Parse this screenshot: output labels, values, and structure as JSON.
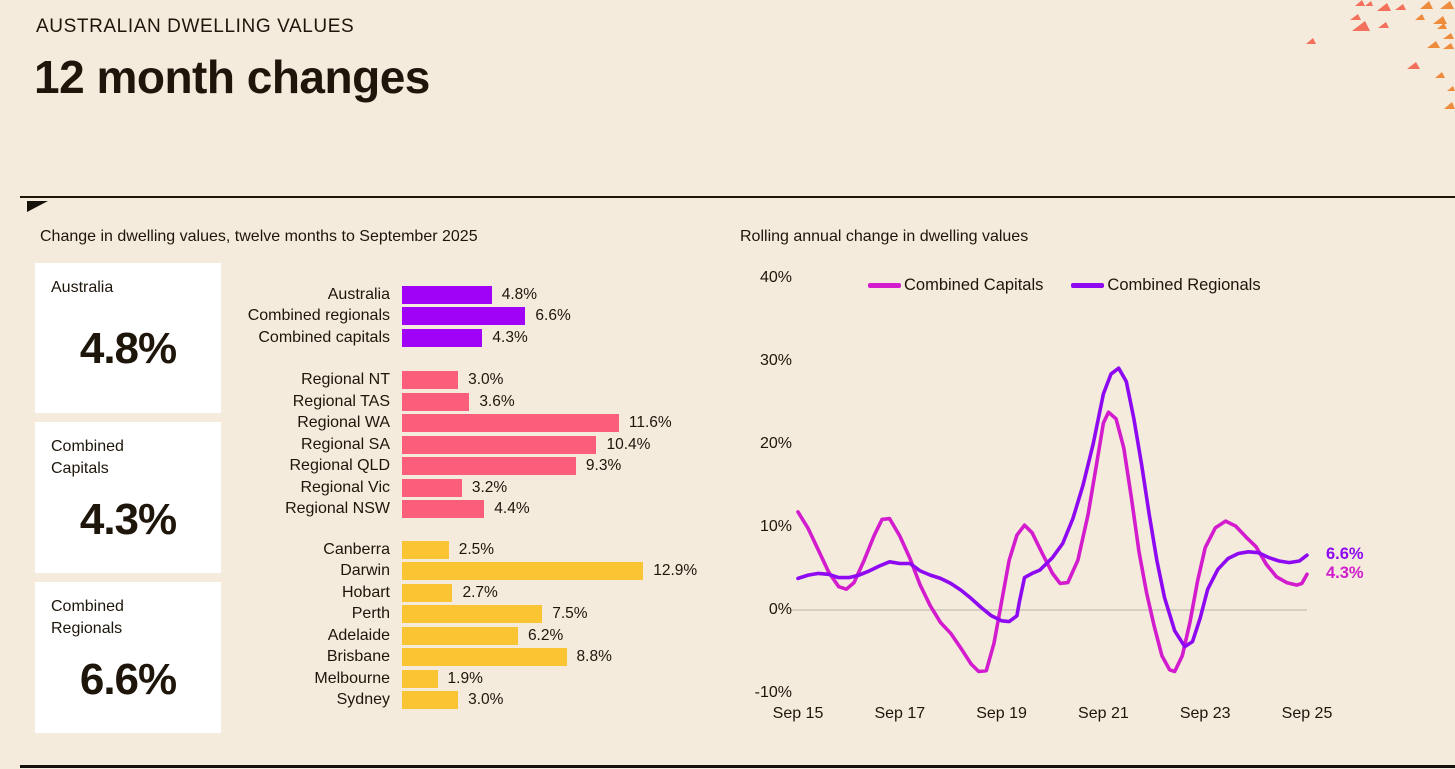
{
  "page": {
    "eyebrow": "AUSTRALIAN DWELLING VALUES",
    "title": "12 month changes"
  },
  "summary_cards": [
    {
      "label": "Australia",
      "value": "4.8%"
    },
    {
      "label": "Combined\nCapitals",
      "value": "4.3%"
    },
    {
      "label": "Combined\nRegionals",
      "value": "6.6%"
    }
  ],
  "colors": {
    "background": "#F4EBDC",
    "text": "#1E160B",
    "card_bg": "#FFFFFF",
    "zero_line": "#CBC4B8",
    "rule": "#1E160B",
    "deco_coral": "#F2705C",
    "deco_orange": "#EE8C3E"
  },
  "chart_data": [
    {
      "type": "bar",
      "title": "Change in dwelling values, twelve months to September 2025",
      "orientation": "horizontal",
      "unit": "%",
      "value_format": "one_decimal_percent",
      "groups": [
        {
          "name": "national",
          "color": "#A001F7",
          "bars": [
            {
              "label": "Australia",
              "value": 4.8
            },
            {
              "label": "Combined regionals",
              "value": 6.6
            },
            {
              "label": "Combined capitals",
              "value": 4.3
            }
          ]
        },
        {
          "name": "regional",
          "color": "#FA5E7B",
          "bars": [
            {
              "label": "Regional NT",
              "value": 3.0
            },
            {
              "label": "Regional TAS",
              "value": 3.6
            },
            {
              "label": "Regional WA",
              "value": 11.6
            },
            {
              "label": "Regional SA",
              "value": 10.4
            },
            {
              "label": "Regional QLD",
              "value": 9.3
            },
            {
              "label": "Regional Vic",
              "value": 3.2
            },
            {
              "label": "Regional NSW",
              "value": 4.4
            }
          ]
        },
        {
          "name": "capitals",
          "color": "#FAC433",
          "bars": [
            {
              "label": "Canberra",
              "value": 2.5
            },
            {
              "label": "Darwin",
              "value": 12.9
            },
            {
              "label": "Hobart",
              "value": 2.7
            },
            {
              "label": "Perth",
              "value": 7.5
            },
            {
              "label": "Adelaide",
              "value": 6.2
            },
            {
              "label": "Brisbane",
              "value": 8.8
            },
            {
              "label": "Melbourne",
              "value": 1.9
            },
            {
              "label": "Sydney",
              "value": 3.0
            }
          ]
        }
      ]
    },
    {
      "type": "line",
      "title": "Rolling annual change in dwelling values",
      "x_ticks": [
        {
          "label": "Sep 15",
          "t": 0
        },
        {
          "label": "Sep 17",
          "t": 2
        },
        {
          "label": "Sep 19",
          "t": 4
        },
        {
          "label": "Sep 21",
          "t": 6
        },
        {
          "label": "Sep 23",
          "t": 8
        },
        {
          "label": "Sep 25",
          "t": 10
        }
      ],
      "y_ticks": [
        {
          "label": "40%",
          "value": 40
        },
        {
          "label": "30%",
          "value": 30
        },
        {
          "label": "20%",
          "value": 20
        },
        {
          "label": "10%",
          "value": 10
        },
        {
          "label": "0%",
          "value": 0
        },
        {
          "label": "-10%",
          "value": -10
        }
      ],
      "ylim": [
        -10,
        40
      ],
      "x_range_years_from_sep15": [
        0,
        10
      ],
      "grid": "zero_line_only",
      "legend_position": "top",
      "series": [
        {
          "name": "Combined Capitals",
          "color": "#D21CCE",
          "end_label": "4.3%",
          "points": [
            [
              0,
              11.8
            ],
            [
              0.2,
              9.8
            ],
            [
              0.4,
              7.2
            ],
            [
              0.6,
              4.6
            ],
            [
              0.8,
              2.8
            ],
            [
              0.95,
              2.5
            ],
            [
              1.1,
              3.3
            ],
            [
              1.3,
              6.0
            ],
            [
              1.5,
              9.0
            ],
            [
              1.65,
              10.9
            ],
            [
              1.8,
              11.0
            ],
            [
              2.0,
              8.9
            ],
            [
              2.2,
              6.2
            ],
            [
              2.4,
              3.0
            ],
            [
              2.6,
              0.5
            ],
            [
              2.8,
              -1.5
            ],
            [
              3.0,
              -2.8
            ],
            [
              3.2,
              -4.6
            ],
            [
              3.4,
              -6.5
            ],
            [
              3.55,
              -7.4
            ],
            [
              3.7,
              -7.3
            ],
            [
              3.85,
              -4.0
            ],
            [
              4.0,
              1.0
            ],
            [
              4.15,
              6.0
            ],
            [
              4.3,
              9.0
            ],
            [
              4.45,
              10.2
            ],
            [
              4.6,
              9.3
            ],
            [
              4.8,
              6.8
            ],
            [
              5.0,
              4.4
            ],
            [
              5.15,
              3.2
            ],
            [
              5.3,
              3.3
            ],
            [
              5.5,
              6.0
            ],
            [
              5.7,
              11.5
            ],
            [
              5.85,
              17.0
            ],
            [
              6.0,
              22.5
            ],
            [
              6.1,
              23.8
            ],
            [
              6.25,
              23.0
            ],
            [
              6.4,
              19.5
            ],
            [
              6.55,
              13.5
            ],
            [
              6.7,
              7.0
            ],
            [
              6.85,
              2.0
            ],
            [
              7.0,
              -2.0
            ],
            [
              7.15,
              -5.5
            ],
            [
              7.3,
              -7.2
            ],
            [
              7.4,
              -7.4
            ],
            [
              7.55,
              -5.5
            ],
            [
              7.7,
              -1.5
            ],
            [
              7.85,
              3.5
            ],
            [
              8.0,
              7.5
            ],
            [
              8.2,
              9.9
            ],
            [
              8.4,
              10.7
            ],
            [
              8.6,
              10.1
            ],
            [
              8.8,
              8.8
            ],
            [
              9.0,
              7.6
            ],
            [
              9.2,
              5.5
            ],
            [
              9.4,
              4.0
            ],
            [
              9.6,
              3.3
            ],
            [
              9.8,
              3.0
            ],
            [
              9.9,
              3.2
            ],
            [
              10,
              4.3
            ]
          ]
        },
        {
          "name": "Combined Regionals",
          "color": "#8E09F2",
          "end_label": "6.6%",
          "points": [
            [
              0,
              3.8
            ],
            [
              0.2,
              4.2
            ],
            [
              0.4,
              4.4
            ],
            [
              0.6,
              4.3
            ],
            [
              0.8,
              3.9
            ],
            [
              1.0,
              3.9
            ],
            [
              1.2,
              4.2
            ],
            [
              1.4,
              4.7
            ],
            [
              1.6,
              5.3
            ],
            [
              1.8,
              5.8
            ],
            [
              2.0,
              5.6
            ],
            [
              2.2,
              5.6
            ],
            [
              2.4,
              4.7
            ],
            [
              2.6,
              4.2
            ],
            [
              2.8,
              3.8
            ],
            [
              3.0,
              3.2
            ],
            [
              3.2,
              2.4
            ],
            [
              3.4,
              1.4
            ],
            [
              3.6,
              0.3
            ],
            [
              3.8,
              -0.7
            ],
            [
              4.0,
              -1.3
            ],
            [
              4.15,
              -1.4
            ],
            [
              4.3,
              -0.7
            ],
            [
              4.35,
              1.0
            ],
            [
              4.45,
              3.9
            ],
            [
              4.6,
              4.4
            ],
            [
              4.75,
              4.8
            ],
            [
              4.9,
              5.7
            ],
            [
              5.0,
              6.3
            ],
            [
              5.2,
              8.0
            ],
            [
              5.4,
              11.0
            ],
            [
              5.6,
              15.0
            ],
            [
              5.8,
              20.0
            ],
            [
              6.0,
              26.0
            ],
            [
              6.15,
              28.4
            ],
            [
              6.3,
              29.1
            ],
            [
              6.45,
              27.5
            ],
            [
              6.6,
              23.0
            ],
            [
              6.75,
              17.5
            ],
            [
              6.9,
              11.5
            ],
            [
              7.05,
              6.0
            ],
            [
              7.2,
              1.5
            ],
            [
              7.4,
              -2.5
            ],
            [
              7.6,
              -4.4
            ],
            [
              7.75,
              -3.8
            ],
            [
              7.9,
              -1.0
            ],
            [
              8.05,
              2.5
            ],
            [
              8.25,
              4.9
            ],
            [
              8.45,
              6.2
            ],
            [
              8.65,
              6.8
            ],
            [
              8.85,
              7.0
            ],
            [
              9.05,
              6.9
            ],
            [
              9.25,
              6.3
            ],
            [
              9.45,
              5.9
            ],
            [
              9.65,
              5.7
            ],
            [
              9.85,
              5.9
            ],
            [
              10,
              6.6
            ]
          ]
        }
      ]
    }
  ]
}
